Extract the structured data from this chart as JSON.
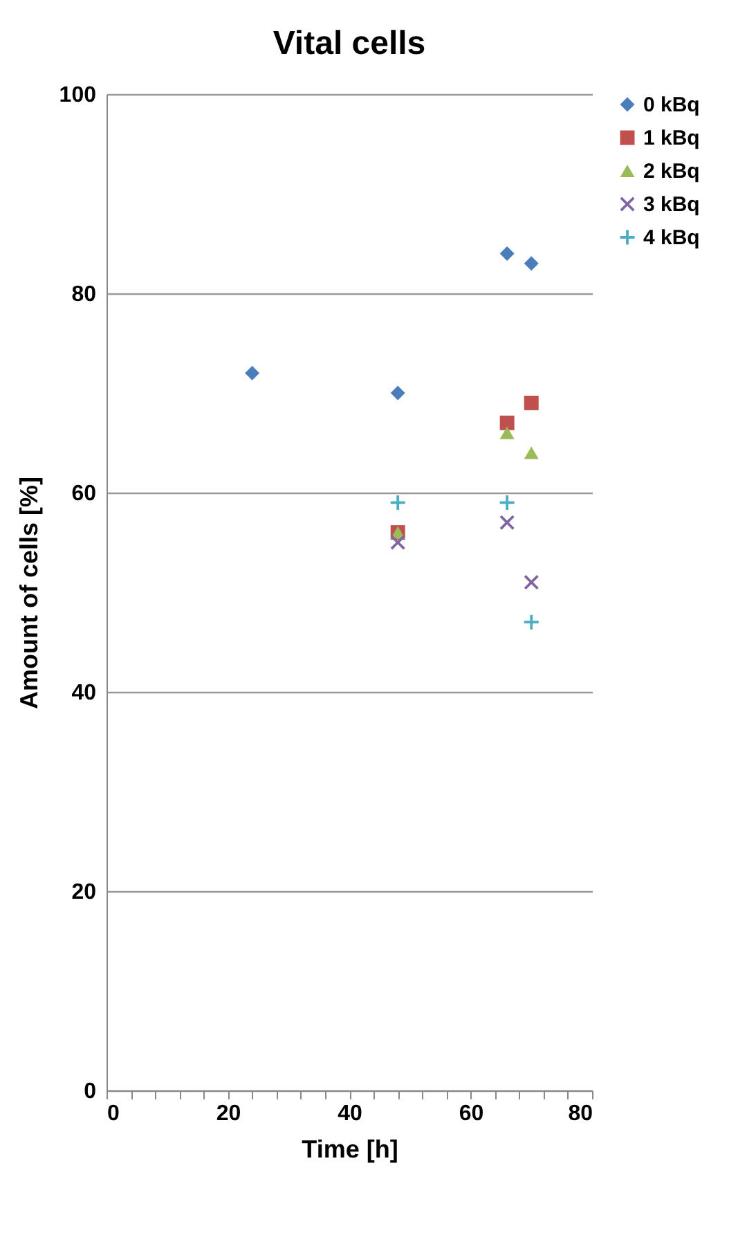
{
  "chart_data": {
    "type": "scatter",
    "title": "Vital cells",
    "xlabel": "Time [h]",
    "ylabel": "Amount of  cells [%]",
    "xlim": [
      0,
      80
    ],
    "xticks": [
      0,
      {
        "value": 4,
        "label": null
      },
      {
        "value": 8,
        "label": null
      },
      {
        "value": 12,
        "label": null
      },
      {
        "value": 16,
        "label": null
      },
      20,
      {
        "value": 24,
        "label": null
      },
      {
        "value": 28,
        "label": null
      },
      {
        "value": 32,
        "label": null
      },
      {
        "value": 36,
        "label": null
      },
      40,
      {
        "value": 44,
        "label": null
      },
      {
        "value": 48,
        "label": null
      },
      {
        "value": 52,
        "label": null
      },
      {
        "value": 56,
        "label": null
      },
      60,
      {
        "value": 64,
        "label": null
      },
      {
        "value": 68,
        "label": null
      },
      {
        "value": 72,
        "label": null
      },
      {
        "value": 76,
        "label": null
      },
      80
    ],
    "ylim": [
      0,
      100
    ],
    "yticks": [
      0,
      20,
      40,
      60,
      80,
      100
    ],
    "grid": "y",
    "legend": "right",
    "series": [
      {
        "name": "0 kBq",
        "color": "#4a7ebb",
        "marker": "diamond",
        "x": [
          24,
          48,
          66,
          70
        ],
        "values": [
          72,
          70,
          84,
          83
        ]
      },
      {
        "name": "1 kBq",
        "color": "#c0504d",
        "marker": "square",
        "x": [
          48,
          66,
          70
        ],
        "values": [
          56,
          67,
          69
        ]
      },
      {
        "name": "2 kBq",
        "color": "#9bbb59",
        "marker": "triangle",
        "x": [
          48,
          66,
          70
        ],
        "values": [
          56,
          66,
          64
        ]
      },
      {
        "name": "3 kBq",
        "color": "#8064a2",
        "marker": "x",
        "x": [
          48,
          66,
          70
        ],
        "values": [
          55,
          57,
          51
        ]
      },
      {
        "name": "4 kBq",
        "color": "#4bacc6",
        "marker": "cross",
        "x": [
          48,
          66,
          70
        ],
        "values": [
          59,
          59,
          47
        ]
      }
    ]
  }
}
